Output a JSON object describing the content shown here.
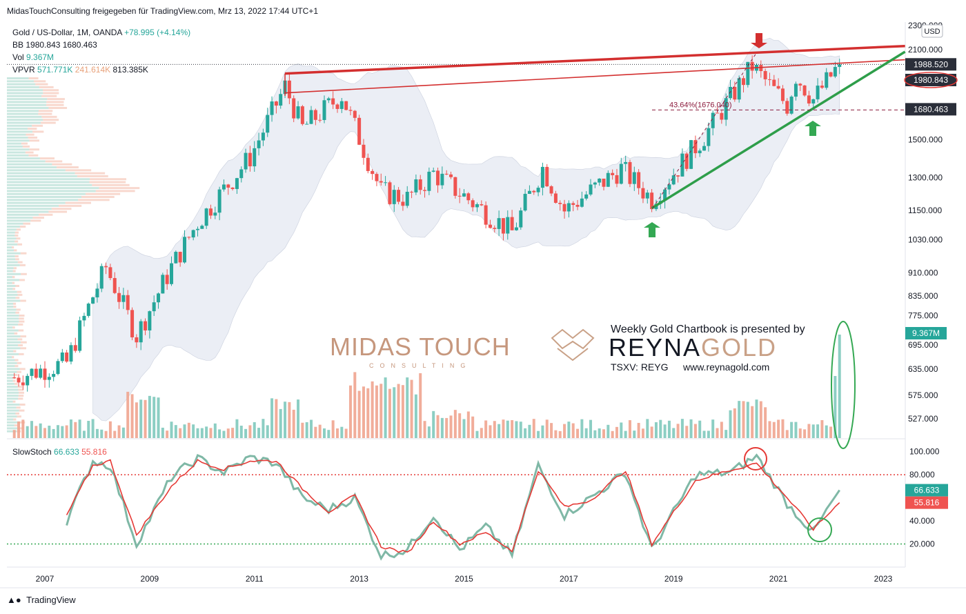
{
  "header": {
    "publisher_line": "MidasTouchConsulting freigegeben für TradingView.com, Mrz 13, 2022 17:44 UTC+1"
  },
  "legend": {
    "symbol": "Gold / US-Dollar, 1M, OANDA",
    "change": "+78.995 (+4.14%)",
    "bb_label": "BB",
    "bb_values": "1980.843 1680.463",
    "vol_label": "Vol",
    "vol_value": "9.367M",
    "vpvr_label": "VPVR",
    "vpvr_up": "571.771K",
    "vpvr_down": "241.614K",
    "vpvr_total": "813.385K"
  },
  "price_axis": {
    "currency": "USD",
    "ticks": [
      "2300.000",
      "2100.000",
      "1500.000",
      "1300.000",
      "1150.000",
      "1030.000",
      "910.000",
      "835.000",
      "775.000",
      "695.000",
      "635.000",
      "575.000",
      "527.000"
    ],
    "badges": [
      {
        "value": "1988.520",
        "color": "#2a2e39"
      },
      {
        "value": "1980.843",
        "color": "#2a2e39"
      },
      {
        "value": "1680.463",
        "color": "#2a2e39"
      },
      {
        "value": "9.367M",
        "color": "#26a69a"
      }
    ],
    "fib_label": "43.64%(1676.040)"
  },
  "stoch_axis": {
    "label": "SlowStoch",
    "k_value": "66.633",
    "d_value": "55.816",
    "ticks": [
      "100.000",
      "80.000",
      "40.000",
      "20.000"
    ]
  },
  "time_axis": {
    "ticks": [
      "2007",
      "2009",
      "2011",
      "2013",
      "2015",
      "2017",
      "2019",
      "2021",
      "2023"
    ]
  },
  "branding": {
    "midas": "MIDAS TOUCH",
    "midas_sub": "CONSULTING",
    "reyna_head": "Weekly Gold Chartbook is presented by",
    "reyna_logo_a": "REYNA",
    "reyna_logo_b": "GOLD",
    "reyna_ticker": "TSXV: REYG",
    "reyna_url": "www.reynagold.com"
  },
  "footer": {
    "brand": "TradingView"
  },
  "colors": {
    "up": "#26a69a",
    "down": "#ef5350",
    "resistance": "#d32f2f",
    "support": "#2e9e4a",
    "band": "#e4e8f2",
    "stoch_k": "#7fb8a6",
    "stoch_d": "#e53935"
  },
  "chart_data": [
    {
      "type": "candlestick",
      "title": "Gold / US-Dollar, 1M, OANDA",
      "ylabel": "USD",
      "y_scale": "log",
      "ylim": [
        490,
        2330
      ],
      "x_range": [
        "2006-01",
        "2023-06"
      ],
      "ohlc_keyframes": [
        {
          "date": "2006-06",
          "close": 615
        },
        {
          "date": "2007-06",
          "close": 650
        },
        {
          "date": "2007-12",
          "close": 834
        },
        {
          "date": "2008-03",
          "close": 930
        },
        {
          "date": "2008-10",
          "close": 720
        },
        {
          "date": "2009-06",
          "close": 930
        },
        {
          "date": "2009-12",
          "close": 1100
        },
        {
          "date": "2010-12",
          "close": 1405
        },
        {
          "date": "2011-08",
          "close": 1830
        },
        {
          "date": "2011-12",
          "close": 1565
        },
        {
          "date": "2012-09",
          "close": 1772
        },
        {
          "date": "2013-06",
          "close": 1234
        },
        {
          "date": "2013-12",
          "close": 1202
        },
        {
          "date": "2014-06",
          "close": 1322
        },
        {
          "date": "2015-12",
          "close": 1061
        },
        {
          "date": "2016-07",
          "close": 1350
        },
        {
          "date": "2016-12",
          "close": 1150
        },
        {
          "date": "2018-01",
          "close": 1345
        },
        {
          "date": "2018-08",
          "close": 1200
        },
        {
          "date": "2019-08",
          "close": 1520
        },
        {
          "date": "2020-07",
          "close": 1975
        },
        {
          "date": "2021-03",
          "close": 1707
        },
        {
          "date": "2021-05",
          "close": 1906
        },
        {
          "date": "2021-09",
          "close": 1743
        },
        {
          "date": "2022-03",
          "close": 1988.52
        }
      ],
      "last_close": 1988.52,
      "bollinger": {
        "upper": 1980.843,
        "lower": 1680.463
      },
      "fibonacci": {
        "level": "43.64%",
        "price": 1676.04
      },
      "resistance_line": {
        "from": [
          "2011-08",
          1921
        ],
        "to": [
          "2023-06",
          2130
        ]
      },
      "support_line": {
        "from": [
          "2018-08",
          1160
        ],
        "to": [
          "2023-06",
          2085
        ]
      },
      "volume_last": "9.367M"
    },
    {
      "type": "line",
      "title": "SlowStoch",
      "ylim": [
        0,
        110
      ],
      "levels": [
        80,
        20
      ],
      "series": [
        {
          "name": "%K",
          "keyframes": [
            {
              "date": "2007-06",
              "value": 40
            },
            {
              "date": "2007-12",
              "value": 92
            },
            {
              "date": "2008-04",
              "value": 88
            },
            {
              "date": "2008-10",
              "value": 20
            },
            {
              "date": "2009-06",
              "value": 78
            },
            {
              "date": "2009-12",
              "value": 94
            },
            {
              "date": "2010-06",
              "value": 82
            },
            {
              "date": "2010-12",
              "value": 95
            },
            {
              "date": "2011-06",
              "value": 90
            },
            {
              "date": "2011-12",
              "value": 60
            },
            {
              "date": "2012-06",
              "value": 50
            },
            {
              "date": "2012-12",
              "value": 60
            },
            {
              "date": "2013-06",
              "value": 10
            },
            {
              "date": "2013-12",
              "value": 15
            },
            {
              "date": "2014-06",
              "value": 45
            },
            {
              "date": "2014-12",
              "value": 15
            },
            {
              "date": "2015-06",
              "value": 35
            },
            {
              "date": "2015-12",
              "value": 10
            },
            {
              "date": "2016-06",
              "value": 88
            },
            {
              "date": "2016-12",
              "value": 45
            },
            {
              "date": "2017-06",
              "value": 60
            },
            {
              "date": "2018-02",
              "value": 82
            },
            {
              "date": "2018-08",
              "value": 15
            },
            {
              "date": "2019-06",
              "value": 80
            },
            {
              "date": "2020-02",
              "value": 82
            },
            {
              "date": "2020-08",
              "value": 96
            },
            {
              "date": "2021-03",
              "value": 55
            },
            {
              "date": "2021-09",
              "value": 30
            },
            {
              "date": "2022-03",
              "value": 66.633
            }
          ]
        },
        {
          "name": "%D",
          "keyframes": [
            {
              "date": "2007-06",
              "value": 45
            },
            {
              "date": "2007-12",
              "value": 88
            },
            {
              "date": "2008-04",
              "value": 92
            },
            {
              "date": "2008-10",
              "value": 28
            },
            {
              "date": "2009-06",
              "value": 70
            },
            {
              "date": "2009-12",
              "value": 92
            },
            {
              "date": "2010-06",
              "value": 85
            },
            {
              "date": "2010-12",
              "value": 92
            },
            {
              "date": "2011-06",
              "value": 92
            },
            {
              "date": "2011-12",
              "value": 68
            },
            {
              "date": "2012-06",
              "value": 48
            },
            {
              "date": "2012-12",
              "value": 62
            },
            {
              "date": "2013-06",
              "value": 18
            },
            {
              "date": "2013-12",
              "value": 12
            },
            {
              "date": "2014-06",
              "value": 40
            },
            {
              "date": "2014-12",
              "value": 20
            },
            {
              "date": "2015-06",
              "value": 30
            },
            {
              "date": "2015-12",
              "value": 14
            },
            {
              "date": "2016-06",
              "value": 84
            },
            {
              "date": "2016-12",
              "value": 52
            },
            {
              "date": "2017-06",
              "value": 58
            },
            {
              "date": "2018-02",
              "value": 84
            },
            {
              "date": "2018-08",
              "value": 20
            },
            {
              "date": "2019-06",
              "value": 75
            },
            {
              "date": "2020-02",
              "value": 84
            },
            {
              "date": "2020-08",
              "value": 90
            },
            {
              "date": "2021-03",
              "value": 60
            },
            {
              "date": "2021-09",
              "value": 33
            },
            {
              "date": "2022-03",
              "value": 55.816
            }
          ]
        }
      ],
      "k_last": 66.633,
      "d_last": 55.816
    }
  ]
}
